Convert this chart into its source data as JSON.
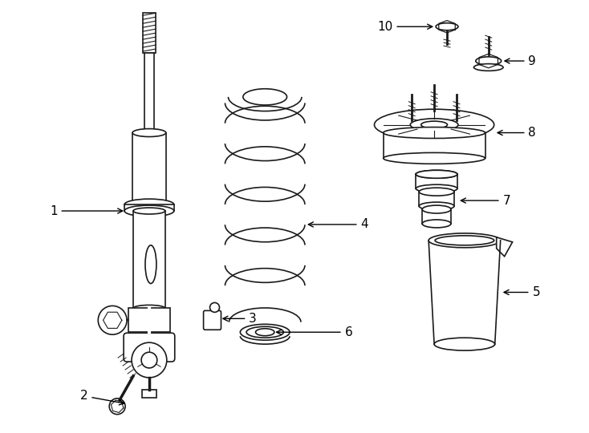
{
  "bg_color": "#ffffff",
  "line_color": "#1a1a1a",
  "label_color": "#000000",
  "font_size_labels": 11,
  "arrow_color": "#000000",
  "figsize": [
    7.34,
    5.4
  ],
  "dpi": 100
}
